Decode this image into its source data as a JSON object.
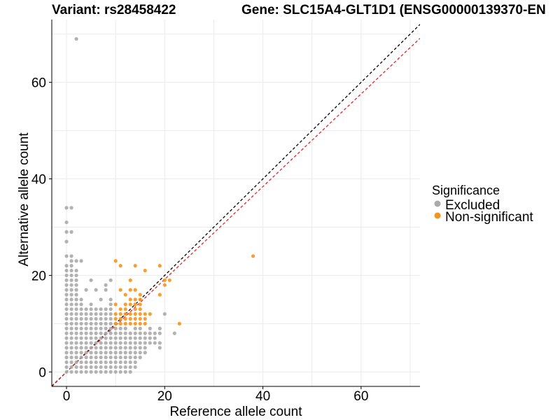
{
  "chart_data": {
    "type": "scatter",
    "title_left": "Variant: rs28458422",
    "title_right": "Gene: SLC15A4-GLT1D1 (ENSG00000139370-EN",
    "xlabel": "Reference allele count",
    "ylabel": "Alternative allele count",
    "xlim": [
      -3,
      72
    ],
    "ylim": [
      -3,
      73
    ],
    "x_ticks": [
      0,
      20,
      40,
      60
    ],
    "y_ticks": [
      0,
      20,
      40,
      60
    ],
    "grid": true,
    "legend": {
      "title": "Significance",
      "placement": "right",
      "entries": [
        {
          "label": "Excluded",
          "color": "#aaaaaa"
        },
        {
          "label": "Non-significant",
          "color": "#f7941d"
        }
      ]
    },
    "reference_lines": [
      {
        "slope": 1,
        "intercept": 0,
        "color": "#000000",
        "style": "dashed"
      },
      {
        "slope": 0.96,
        "intercept": 0,
        "color": "#ee2222",
        "style": "dashed"
      }
    ],
    "series": [
      {
        "name": "Excluded",
        "color": "#aaaaaa",
        "grid_block": {
          "x": [
            0,
            9
          ],
          "y": [
            0,
            13
          ]
        },
        "points": [
          [
            2,
            69
          ],
          [
            0,
            34
          ],
          [
            1,
            34
          ],
          [
            0,
            31
          ],
          [
            0,
            29
          ],
          [
            1,
            29
          ],
          [
            0,
            27
          ],
          [
            0,
            24
          ],
          [
            1,
            24
          ],
          [
            1,
            23
          ],
          [
            2,
            23
          ],
          [
            3,
            23
          ],
          [
            0,
            22
          ],
          [
            1,
            22
          ],
          [
            0,
            21
          ],
          [
            1,
            21
          ],
          [
            2,
            21
          ],
          [
            0,
            20
          ],
          [
            1,
            20
          ],
          [
            2,
            20
          ],
          [
            0,
            19
          ],
          [
            1,
            19
          ],
          [
            2,
            19
          ],
          [
            5,
            19
          ],
          [
            0,
            18
          ],
          [
            1,
            18
          ],
          [
            2,
            18
          ],
          [
            8,
            18
          ],
          [
            0,
            17
          ],
          [
            1,
            17
          ],
          [
            2,
            17
          ],
          [
            4,
            17
          ],
          [
            6,
            17
          ],
          [
            0,
            16
          ],
          [
            1,
            16
          ],
          [
            2,
            16
          ],
          [
            0,
            15
          ],
          [
            1,
            15
          ],
          [
            2,
            15
          ],
          [
            3,
            15
          ],
          [
            7,
            15
          ],
          [
            0,
            14
          ],
          [
            1,
            14
          ],
          [
            2,
            14
          ],
          [
            3,
            14
          ],
          [
            5,
            14
          ],
          [
            9,
            19
          ],
          [
            8,
            17
          ],
          [
            10,
            0
          ],
          [
            10,
            1
          ],
          [
            10,
            2
          ],
          [
            10,
            3
          ],
          [
            10,
            4
          ],
          [
            10,
            5
          ],
          [
            10,
            6
          ],
          [
            10,
            7
          ],
          [
            10,
            8
          ],
          [
            10,
            9
          ],
          [
            10,
            10
          ],
          [
            11,
            0
          ],
          [
            11,
            1
          ],
          [
            11,
            2
          ],
          [
            11,
            3
          ],
          [
            11,
            4
          ],
          [
            11,
            5
          ],
          [
            11,
            6
          ],
          [
            11,
            7
          ],
          [
            11,
            8
          ],
          [
            11,
            9
          ],
          [
            12,
            1
          ],
          [
            12,
            2
          ],
          [
            12,
            3
          ],
          [
            12,
            4
          ],
          [
            12,
            5
          ],
          [
            12,
            6
          ],
          [
            12,
            7
          ],
          [
            12,
            8
          ],
          [
            12,
            9
          ],
          [
            13,
            1
          ],
          [
            13,
            2
          ],
          [
            13,
            3
          ],
          [
            13,
            4
          ],
          [
            13,
            5
          ],
          [
            13,
            6
          ],
          [
            13,
            7
          ],
          [
            13,
            8
          ],
          [
            14,
            2
          ],
          [
            14,
            3
          ],
          [
            14,
            4
          ],
          [
            14,
            5
          ],
          [
            14,
            6
          ],
          [
            14,
            7
          ],
          [
            14,
            8
          ],
          [
            14,
            9
          ],
          [
            15,
            3
          ],
          [
            15,
            4
          ],
          [
            15,
            5
          ],
          [
            15,
            6
          ],
          [
            15,
            7
          ],
          [
            15,
            8
          ],
          [
            15,
            9
          ],
          [
            16,
            4
          ],
          [
            16,
            5
          ],
          [
            16,
            6
          ],
          [
            16,
            7
          ],
          [
            16,
            8
          ],
          [
            17,
            6
          ],
          [
            17,
            7
          ],
          [
            17,
            8
          ],
          [
            17,
            9
          ],
          [
            18,
            6
          ],
          [
            18,
            7
          ],
          [
            18,
            8
          ],
          [
            19,
            5
          ],
          [
            19,
            6
          ],
          [
            19,
            8
          ],
          [
            19,
            9
          ],
          [
            22,
            8
          ],
          [
            20,
            12
          ],
          [
            12,
            0
          ],
          [
            13,
            0
          ],
          [
            14,
            1
          ],
          [
            9,
            14
          ],
          [
            9,
            15
          ]
        ]
      },
      {
        "name": "Non-significant",
        "color": "#f7941d",
        "points": [
          [
            10,
            23
          ],
          [
            11,
            22
          ],
          [
            14,
            22
          ],
          [
            19,
            22
          ],
          [
            16,
            21
          ],
          [
            13,
            19
          ],
          [
            20,
            19
          ],
          [
            21,
            19
          ],
          [
            20,
            18
          ],
          [
            11,
            17
          ],
          [
            13,
            17
          ],
          [
            14,
            17
          ],
          [
            12,
            16
          ],
          [
            15,
            16
          ],
          [
            19,
            16
          ],
          [
            13,
            15
          ],
          [
            14,
            15
          ],
          [
            15,
            15
          ],
          [
            10,
            14
          ],
          [
            12,
            14
          ],
          [
            13,
            14
          ],
          [
            14,
            14
          ],
          [
            15,
            14
          ],
          [
            11,
            13
          ],
          [
            12,
            13
          ],
          [
            14,
            13
          ],
          [
            15,
            13
          ],
          [
            10,
            12
          ],
          [
            11,
            12
          ],
          [
            12,
            12
          ],
          [
            13,
            12
          ],
          [
            14,
            12
          ],
          [
            15,
            12
          ],
          [
            16,
            12
          ],
          [
            17,
            12
          ],
          [
            10,
            11
          ],
          [
            11,
            11
          ],
          [
            12,
            11
          ],
          [
            13,
            11
          ],
          [
            14,
            11
          ],
          [
            15,
            11
          ],
          [
            16,
            11
          ],
          [
            10,
            10
          ],
          [
            11,
            10
          ],
          [
            12,
            10
          ],
          [
            13,
            10
          ],
          [
            14,
            10
          ],
          [
            15,
            10
          ],
          [
            16,
            10
          ],
          [
            23,
            10
          ],
          [
            38,
            24
          ]
        ]
      }
    ]
  }
}
